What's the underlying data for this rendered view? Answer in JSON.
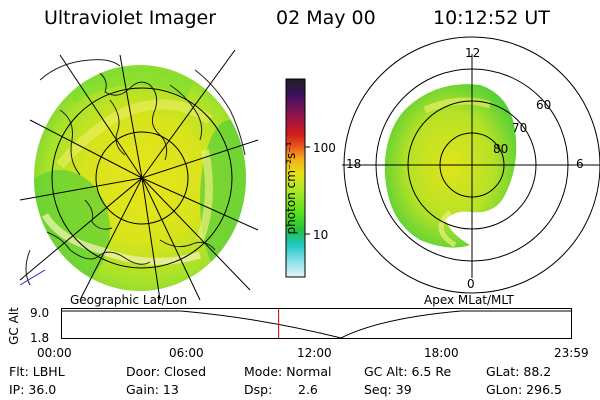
{
  "header": {
    "instrument": "Ultraviolet Imager",
    "date": "02 May 00",
    "time": "10:12:52 UT"
  },
  "left_panel": {
    "caption": "Geographic Lat/Lon"
  },
  "colorbar": {
    "unit_label": "photon cm⁻²s⁻¹",
    "tick_labels": [
      "100",
      "10"
    ],
    "colors": [
      "#202020",
      "#3a1060",
      "#8e1450",
      "#d21c1c",
      "#e8561e",
      "#f5a81c",
      "#e4e418",
      "#a0e628",
      "#54e21c",
      "#24c23c",
      "#20c8c8",
      "#8adfe8",
      "#d2f0f4"
    ]
  },
  "right_panel": {
    "caption": "Apex MLat/MLT",
    "mlt_labels": [
      "12",
      "18",
      "6",
      "0"
    ],
    "mlat_labels": [
      "60",
      "70",
      "80"
    ]
  },
  "timeline": {
    "axis_title": "GC Alt",
    "y_labels": [
      "9.0",
      "1.8"
    ],
    "time_labels": [
      "00:00",
      "06:00",
      "12:00",
      "18:00",
      "23:59"
    ],
    "current_fraction": 0.4256,
    "marker_color": "#cc0000"
  },
  "status": {
    "filter": "Flt: LBHL",
    "ip": "IP: 36.0",
    "door": "Door: Closed",
    "gain": "Gain: 13",
    "mode": "Mode: Normal",
    "dsp_label": "Dsp:",
    "dsp_value": "2.6",
    "gc_alt": "GC Alt: 6.5 Re",
    "seq": "Seq: 39",
    "glat": "GLat: 88.2",
    "glon": "GLon: 296.5"
  }
}
